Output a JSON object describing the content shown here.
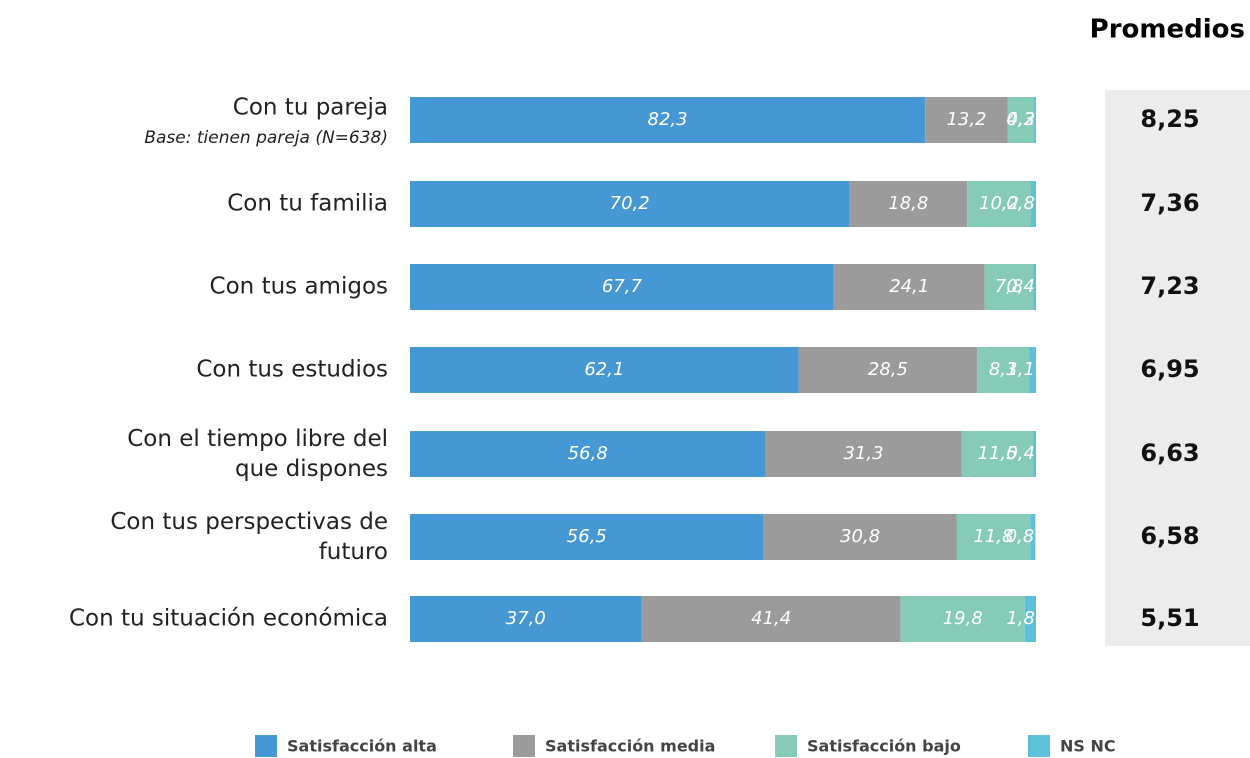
{
  "chart_data": {
    "type": "bar",
    "orientation": "horizontal",
    "stacked": true,
    "categories": [
      "Con tu pareja",
      "Con tu familia",
      "Con tus amigos",
      "Con tus estudios",
      "Con el tiempo libre del\nque dispones",
      "Con tus perspectivas de\nfuturo",
      "Con tu situación económica"
    ],
    "annotation": "Base: tienen pareja (N=638)",
    "xlim": [
      0,
      100
    ],
    "series": [
      {
        "name": "Satisfacción alta",
        "color": "#4598d3",
        "values": [
          82.3,
          70.2,
          67.7,
          62.1,
          56.8,
          56.5,
          37.0
        ],
        "value_labels": [
          "82,3",
          "70,2",
          "67,7",
          "62,1",
          "56,8",
          "56,5",
          "37,0"
        ]
      },
      {
        "name": "Satisfacción media",
        "color": "#9b9b9b",
        "values": [
          13.2,
          18.8,
          24.1,
          28.5,
          31.3,
          30.8,
          41.4
        ],
        "value_labels": [
          "13,2",
          "18,8",
          "24,1",
          "28,5",
          "31,3",
          "30,8",
          "41,4"
        ]
      },
      {
        "name": "Satisfacción bajo",
        "color": "#86cab8",
        "values": [
          4.2,
          10.2,
          7.8,
          8.3,
          11.5,
          11.8,
          19.8
        ],
        "value_labels": [
          "4,2",
          "10,2",
          "7,8",
          "8,3",
          "11,5",
          "11,8",
          "19,8"
        ]
      },
      {
        "name": "NS NC",
        "color": "#5bc0d8",
        "values": [
          0.3,
          0.8,
          0.4,
          1.1,
          0.4,
          0.8,
          1.8
        ],
        "value_labels": [
          "0,3",
          "0,8",
          "0,4",
          "1,1",
          "0,4",
          "0,8",
          "1,8"
        ]
      }
    ],
    "averages_title": "Promedios",
    "averages": [
      8.25,
      7.36,
      7.23,
      6.95,
      6.63,
      6.58,
      5.51
    ],
    "averages_labels": [
      "8,25",
      "7,36",
      "7,23",
      "6,95",
      "6,63",
      "6,58",
      "5,51"
    ],
    "legend": "bottom"
  }
}
